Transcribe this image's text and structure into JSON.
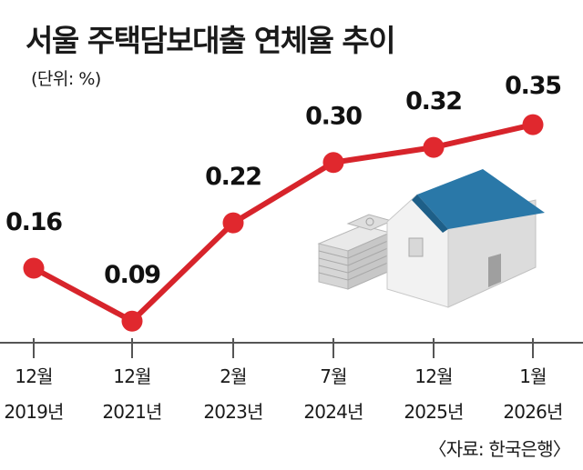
{
  "title": "서울 주택담보대출 연체율 추이",
  "unit_label": "(단위: %)",
  "source_label": "〈자료: 한국은행〉",
  "icon": "house-and-money-icon",
  "colors": {
    "line": "#d7242b",
    "marker": "#e0282e",
    "axis": "#555555"
  },
  "chart_data": {
    "type": "line",
    "title": "서울 주택담보대출 연체율 추이",
    "xlabel": "",
    "ylabel": "",
    "unit": "%",
    "x_top": [
      "12월",
      "12월",
      "2월",
      "7월",
      "12월",
      "1월"
    ],
    "x_bottom": [
      "2019년",
      "2021년",
      "2023년",
      "2024년",
      "2025년",
      "2026년"
    ],
    "values": [
      0.16,
      0.09,
      0.22,
      0.3,
      0.32,
      0.35
    ],
    "value_labels": [
      "0.16",
      "0.09",
      "0.22",
      "0.30",
      "0.32",
      "0.35"
    ],
    "grid": false,
    "legend": "none"
  }
}
